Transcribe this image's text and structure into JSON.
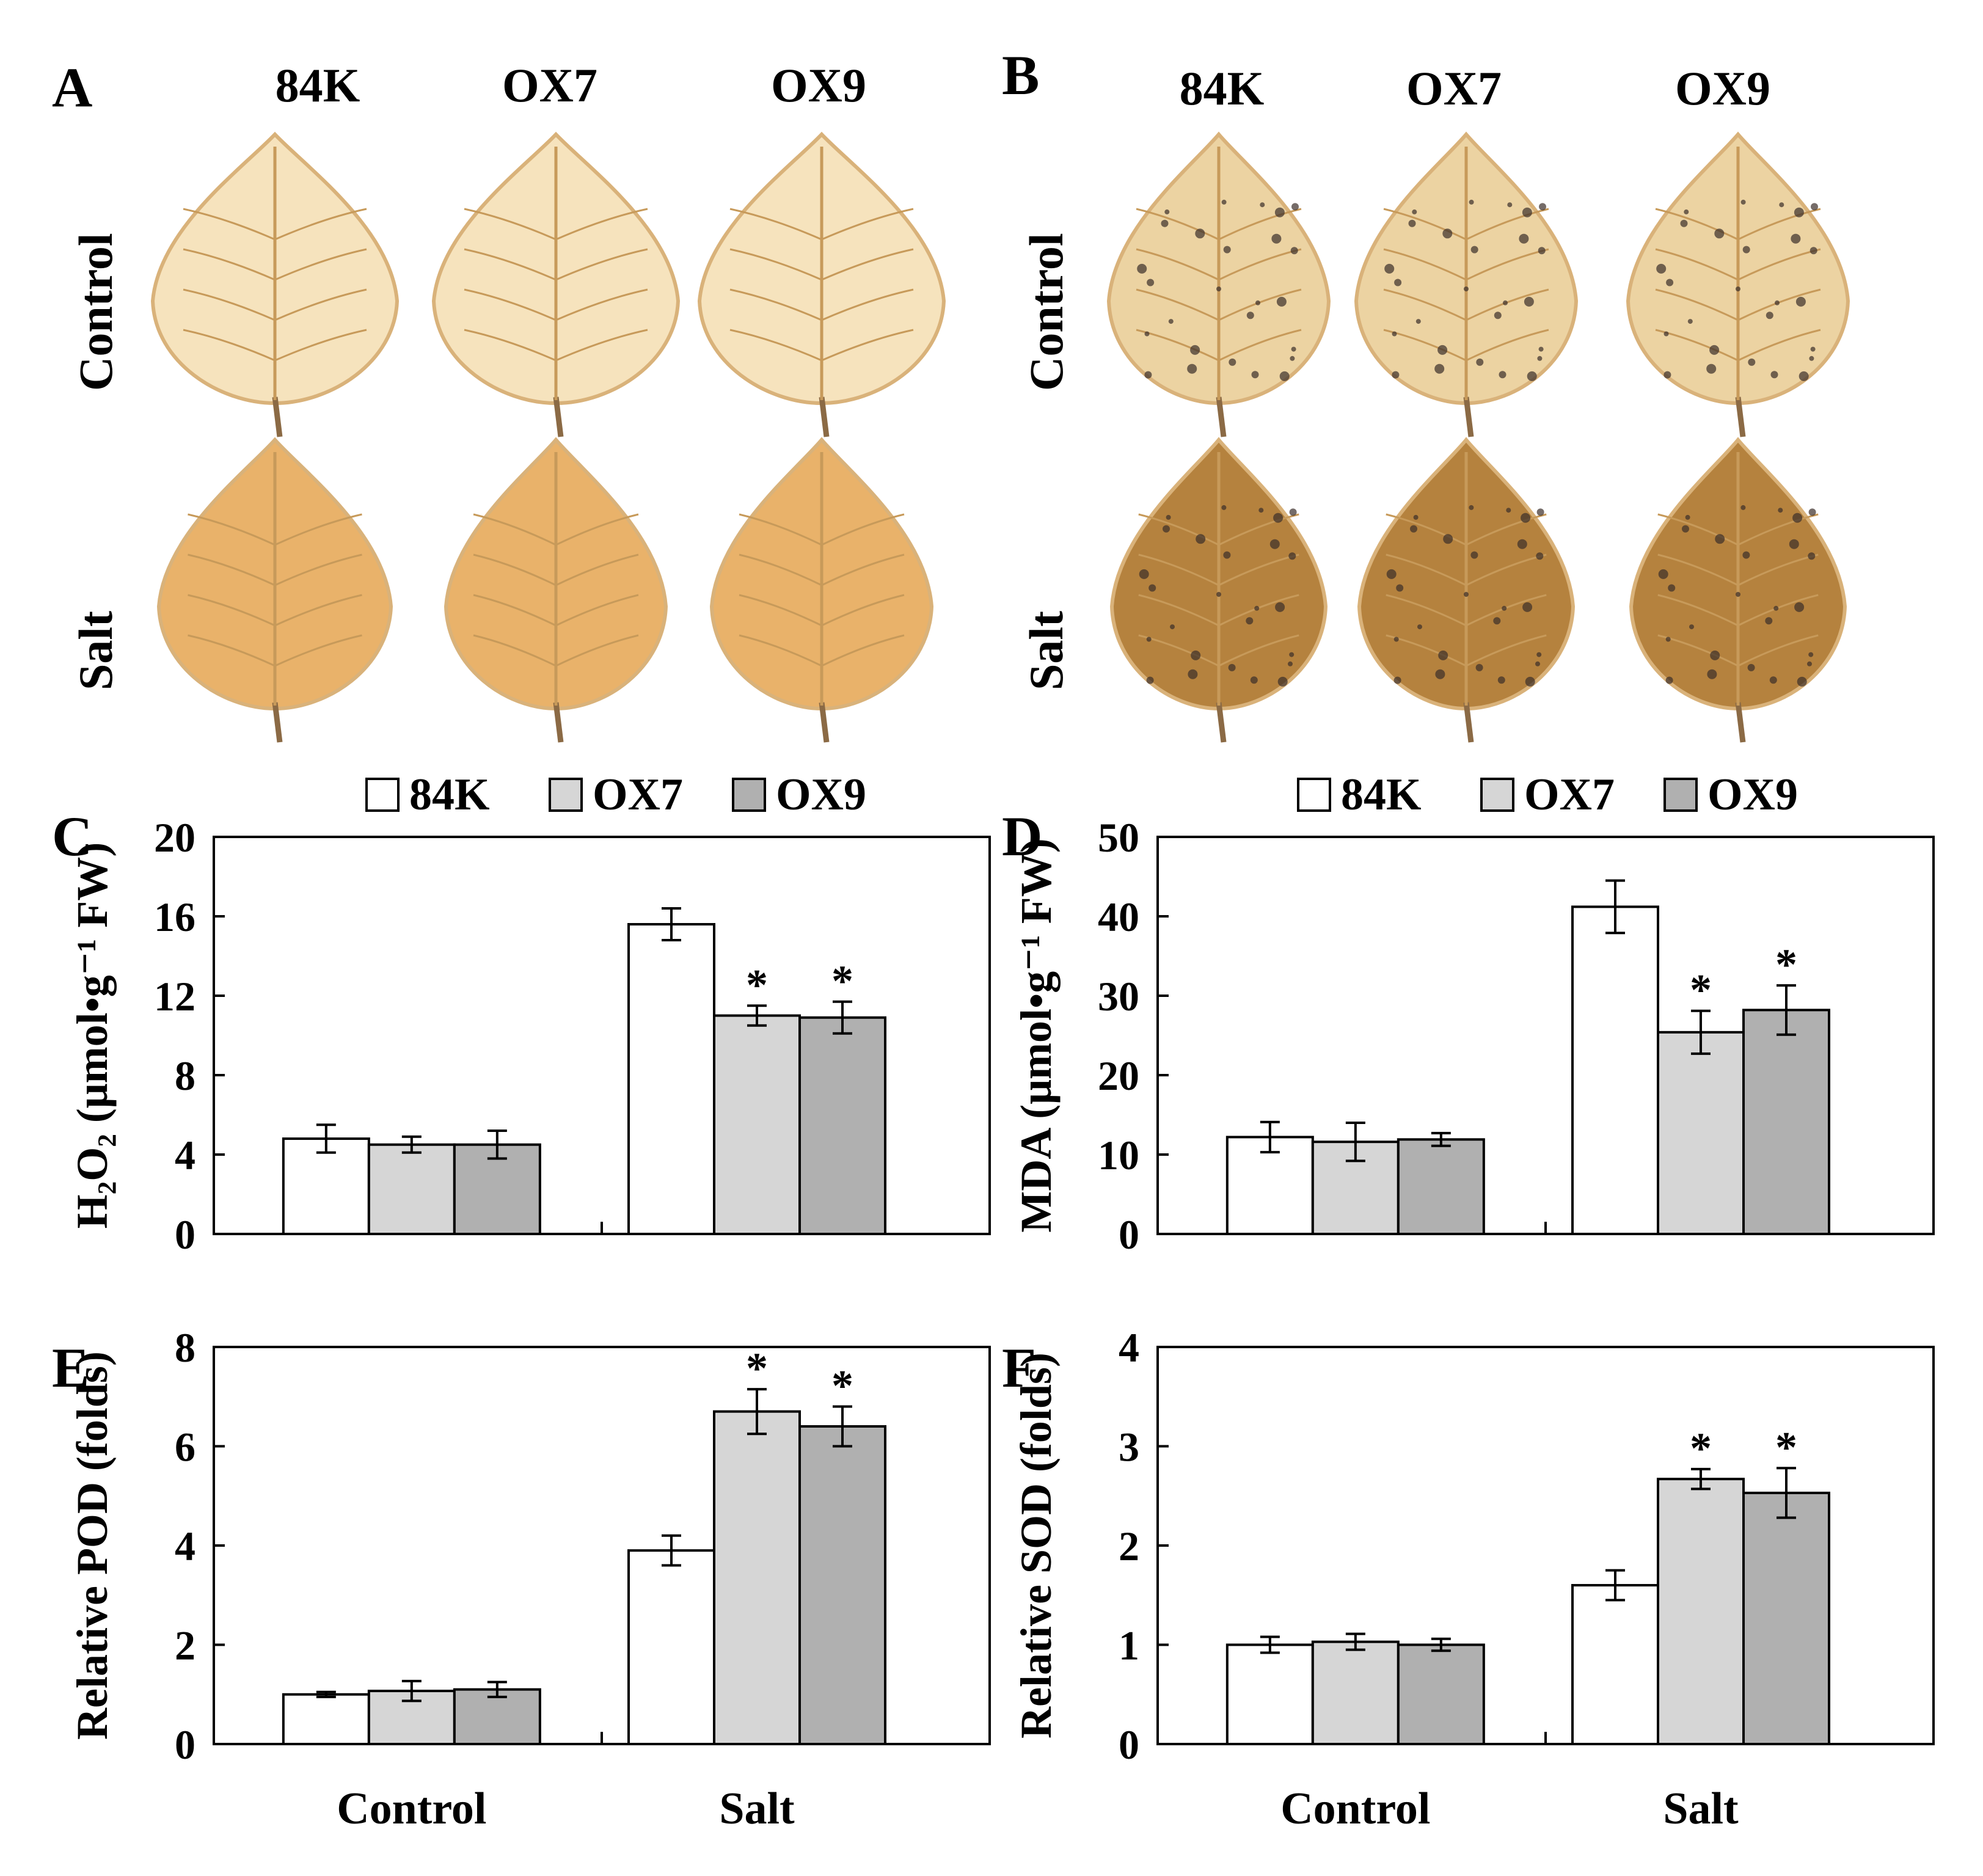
{
  "panels": {
    "A": {
      "letter": "A",
      "genotypes": [
        "84K",
        "OX7",
        "OX9"
      ],
      "rows": [
        "Control",
        "Salt"
      ]
    },
    "B": {
      "letter": "B",
      "genotypes": [
        "84K",
        "OX7",
        "OX9"
      ],
      "rows": [
        "Control",
        "Salt"
      ]
    }
  },
  "colors": {
    "84K": "#ffffff",
    "OX7": "#d6d6d6",
    "OX9": "#b0b0b0",
    "leaf_a_control": "#f6e3bd",
    "leaf_a_salt": "#e9b26a",
    "leaf_b_control": "#ecd3a2",
    "leaf_b_salt": "#b5823e",
    "vein": "#c79a5a",
    "stain": "#3a2d2a"
  },
  "chart_data": [
    {
      "id": "C",
      "letter": "C",
      "type": "bar",
      "categories": [
        "Control",
        "Salt"
      ],
      "series": [
        {
          "name": "84K",
          "values": [
            4.8,
            15.6
          ],
          "errors": [
            0.7,
            0.8
          ]
        },
        {
          "name": "OX7",
          "values": [
            4.5,
            11.0
          ],
          "errors": [
            0.4,
            0.5
          ]
        },
        {
          "name": "OX9",
          "values": [
            4.5,
            10.9
          ],
          "errors": [
            0.7,
            0.8
          ]
        }
      ],
      "significance": [
        [
          "",
          ""
        ],
        [
          "",
          "*"
        ],
        [
          "",
          "*"
        ]
      ],
      "ylim": [
        0,
        20
      ],
      "yticks": [
        0,
        4,
        8,
        12,
        16,
        20
      ],
      "ylabel": "H₂O₂ (μmol•g⁻¹ FW)",
      "xlabel": "",
      "legend": "top-center"
    },
    {
      "id": "D",
      "letter": "D",
      "type": "bar",
      "categories": [
        "Control",
        "Salt"
      ],
      "series": [
        {
          "name": "84K",
          "values": [
            12.2,
            41.2
          ],
          "errors": [
            1.9,
            3.3
          ]
        },
        {
          "name": "OX7",
          "values": [
            11.6,
            25.4
          ],
          "errors": [
            2.4,
            2.7
          ]
        },
        {
          "name": "OX9",
          "values": [
            11.9,
            28.2
          ],
          "errors": [
            0.8,
            3.1
          ]
        }
      ],
      "significance": [
        [
          "",
          ""
        ],
        [
          "",
          "*"
        ],
        [
          "",
          "*"
        ]
      ],
      "ylim": [
        0,
        50
      ],
      "yticks": [
        0,
        10,
        20,
        30,
        40,
        50
      ],
      "ylabel": "MDA (μmol•g⁻¹ FW)",
      "xlabel": "",
      "legend": "top-center"
    },
    {
      "id": "E",
      "letter": "E",
      "type": "bar",
      "categories": [
        "Control",
        "Salt"
      ],
      "series": [
        {
          "name": "84K",
          "values": [
            1.0,
            3.9
          ],
          "errors": [
            0.05,
            0.3
          ]
        },
        {
          "name": "OX7",
          "values": [
            1.07,
            6.7
          ],
          "errors": [
            0.2,
            0.45
          ]
        },
        {
          "name": "OX9",
          "values": [
            1.1,
            6.4
          ],
          "errors": [
            0.15,
            0.4
          ]
        }
      ],
      "significance": [
        [
          "",
          ""
        ],
        [
          "",
          "*"
        ],
        [
          "",
          "*"
        ]
      ],
      "ylim": [
        0,
        8
      ],
      "yticks": [
        0,
        2,
        4,
        6,
        8
      ],
      "ylabel": "Relative POD (folds)",
      "xlabel": "",
      "legend": "none"
    },
    {
      "id": "F",
      "letter": "F",
      "type": "bar",
      "categories": [
        "Control",
        "Salt"
      ],
      "series": [
        {
          "name": "84K",
          "values": [
            1.0,
            1.6
          ],
          "errors": [
            0.08,
            0.15
          ]
        },
        {
          "name": "OX7",
          "values": [
            1.03,
            2.67
          ],
          "errors": [
            0.08,
            0.1
          ]
        },
        {
          "name": "OX9",
          "values": [
            1.0,
            2.53
          ],
          "errors": [
            0.06,
            0.25
          ]
        }
      ],
      "significance": [
        [
          "",
          ""
        ],
        [
          "",
          "*"
        ],
        [
          "",
          "*"
        ]
      ],
      "ylim": [
        0,
        4
      ],
      "yticks": [
        0,
        1,
        2,
        3,
        4
      ],
      "ylabel": "Relative SOD (folds)",
      "xlabel": "",
      "legend": "none"
    }
  ]
}
